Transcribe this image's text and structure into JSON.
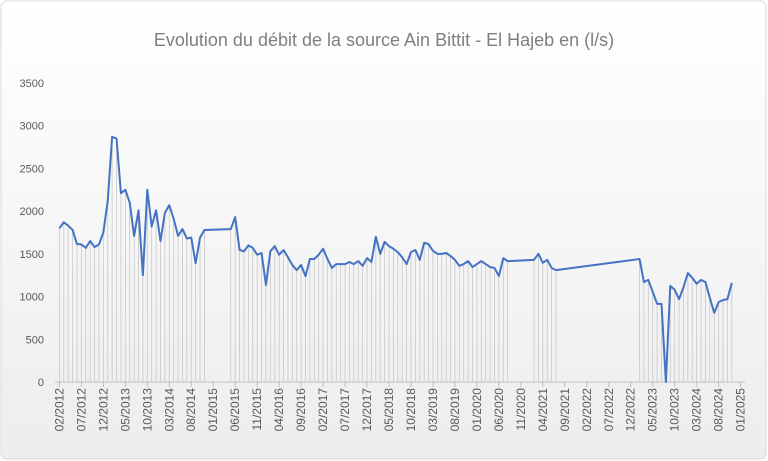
{
  "chart_data": {
    "type": "line",
    "title": "Evolution du débit de la source Ain Bittit - El Hajeb en (l/s)",
    "x": [
      "02/2012",
      "03/2012",
      "04/2012",
      "05/2012",
      "06/2012",
      "07/2012",
      "08/2012",
      "09/2012",
      "10/2012",
      "11/2012",
      "12/2012",
      "01/2013",
      "02/2013",
      "03/2013",
      "04/2013",
      "05/2013",
      "06/2013",
      "07/2013",
      "08/2013",
      "09/2013",
      "10/2013",
      "11/2013",
      "12/2013",
      "01/2014",
      "02/2014",
      "03/2014",
      "04/2014",
      "05/2014",
      "06/2014",
      "07/2014",
      "08/2014",
      "09/2014",
      "10/2014",
      "11/2014",
      "05/2015",
      "06/2015",
      "07/2015",
      "08/2015",
      "09/2015",
      "10/2015",
      "11/2015",
      "12/2015",
      "01/2016",
      "02/2016",
      "03/2016",
      "04/2016",
      "05/2016",
      "06/2016",
      "07/2016",
      "08/2016",
      "09/2016",
      "10/2016",
      "11/2016",
      "12/2016",
      "01/2017",
      "02/2017",
      "03/2017",
      "04/2017",
      "05/2017",
      "06/2017",
      "07/2017",
      "08/2017",
      "09/2017",
      "10/2017",
      "11/2017",
      "12/2017",
      "01/2018",
      "02/2018",
      "03/2018",
      "04/2018",
      "05/2018",
      "06/2018",
      "07/2018",
      "08/2018",
      "09/2018",
      "10/2018",
      "11/2018",
      "12/2018",
      "01/2019",
      "02/2019",
      "03/2019",
      "04/2019",
      "05/2019",
      "06/2019",
      "07/2019",
      "08/2019",
      "09/2019",
      "10/2019",
      "11/2019",
      "12/2019",
      "01/2020",
      "02/2020",
      "03/2020",
      "04/2020",
      "05/2020",
      "06/2020",
      "07/2020",
      "08/2020",
      "02/2021",
      "03/2021",
      "04/2021",
      "05/2021",
      "06/2021",
      "07/2021",
      "02/2023",
      "03/2023",
      "04/2023",
      "05/2023",
      "06/2023",
      "07/2023",
      "08/2023",
      "09/2023",
      "10/2023",
      "11/2023",
      "12/2023",
      "01/2024",
      "02/2024",
      "03/2024",
      "04/2024",
      "05/2024",
      "06/2024",
      "07/2024",
      "08/2024",
      "09/2024",
      "10/2024",
      "11/2024"
    ],
    "values": [
      1800,
      1870,
      1830,
      1780,
      1615,
      1610,
      1570,
      1650,
      1580,
      1610,
      1750,
      2120,
      2870,
      2850,
      2210,
      2250,
      2100,
      1710,
      2010,
      1250,
      2250,
      1820,
      2010,
      1650,
      1980,
      2070,
      1910,
      1710,
      1790,
      1680,
      1690,
      1390,
      1690,
      1780,
      1790,
      1930,
      1545,
      1530,
      1600,
      1570,
      1490,
      1510,
      1135,
      1530,
      1590,
      1490,
      1545,
      1460,
      1370,
      1310,
      1370,
      1240,
      1440,
      1440,
      1490,
      1560,
      1440,
      1335,
      1380,
      1380,
      1380,
      1405,
      1380,
      1415,
      1360,
      1450,
      1405,
      1700,
      1500,
      1640,
      1590,
      1560,
      1520,
      1460,
      1380,
      1520,
      1545,
      1430,
      1630,
      1615,
      1535,
      1500,
      1500,
      1510,
      1475,
      1430,
      1360,
      1380,
      1415,
      1345,
      1380,
      1415,
      1380,
      1345,
      1335,
      1240,
      1450,
      1415,
      1430,
      1500,
      1395,
      1430,
      1335,
      1310,
      1440,
      1170,
      1195,
      1055,
      915,
      915,
      0,
      1125,
      1080,
      970,
      1110,
      1275,
      1220,
      1150,
      1195,
      1170,
      985,
      810,
      935,
      960,
      970,
      1160
    ],
    "color": "#4472c4",
    "xlim": [
      "01/2012",
      "02/2025"
    ],
    "xticks": [
      "02/2012",
      "07/2012",
      "12/2012",
      "05/2013",
      "10/2013",
      "03/2014",
      "08/2014",
      "01/2015",
      "06/2015",
      "11/2015",
      "04/2016",
      "09/2016",
      "02/2017",
      "07/2017",
      "12/2017",
      "05/2018",
      "10/2018",
      "03/2019",
      "08/2019",
      "01/2020",
      "06/2020",
      "11/2020",
      "04/2021",
      "09/2021",
      "02/2022",
      "07/2022",
      "12/2022",
      "05/2023",
      "10/2023",
      "03/2024",
      "08/2024",
      "01/2025"
    ],
    "ylim": [
      0,
      3500
    ],
    "yticks": [
      0,
      500,
      1000,
      1500,
      2000,
      2500,
      3000,
      3500
    ]
  }
}
